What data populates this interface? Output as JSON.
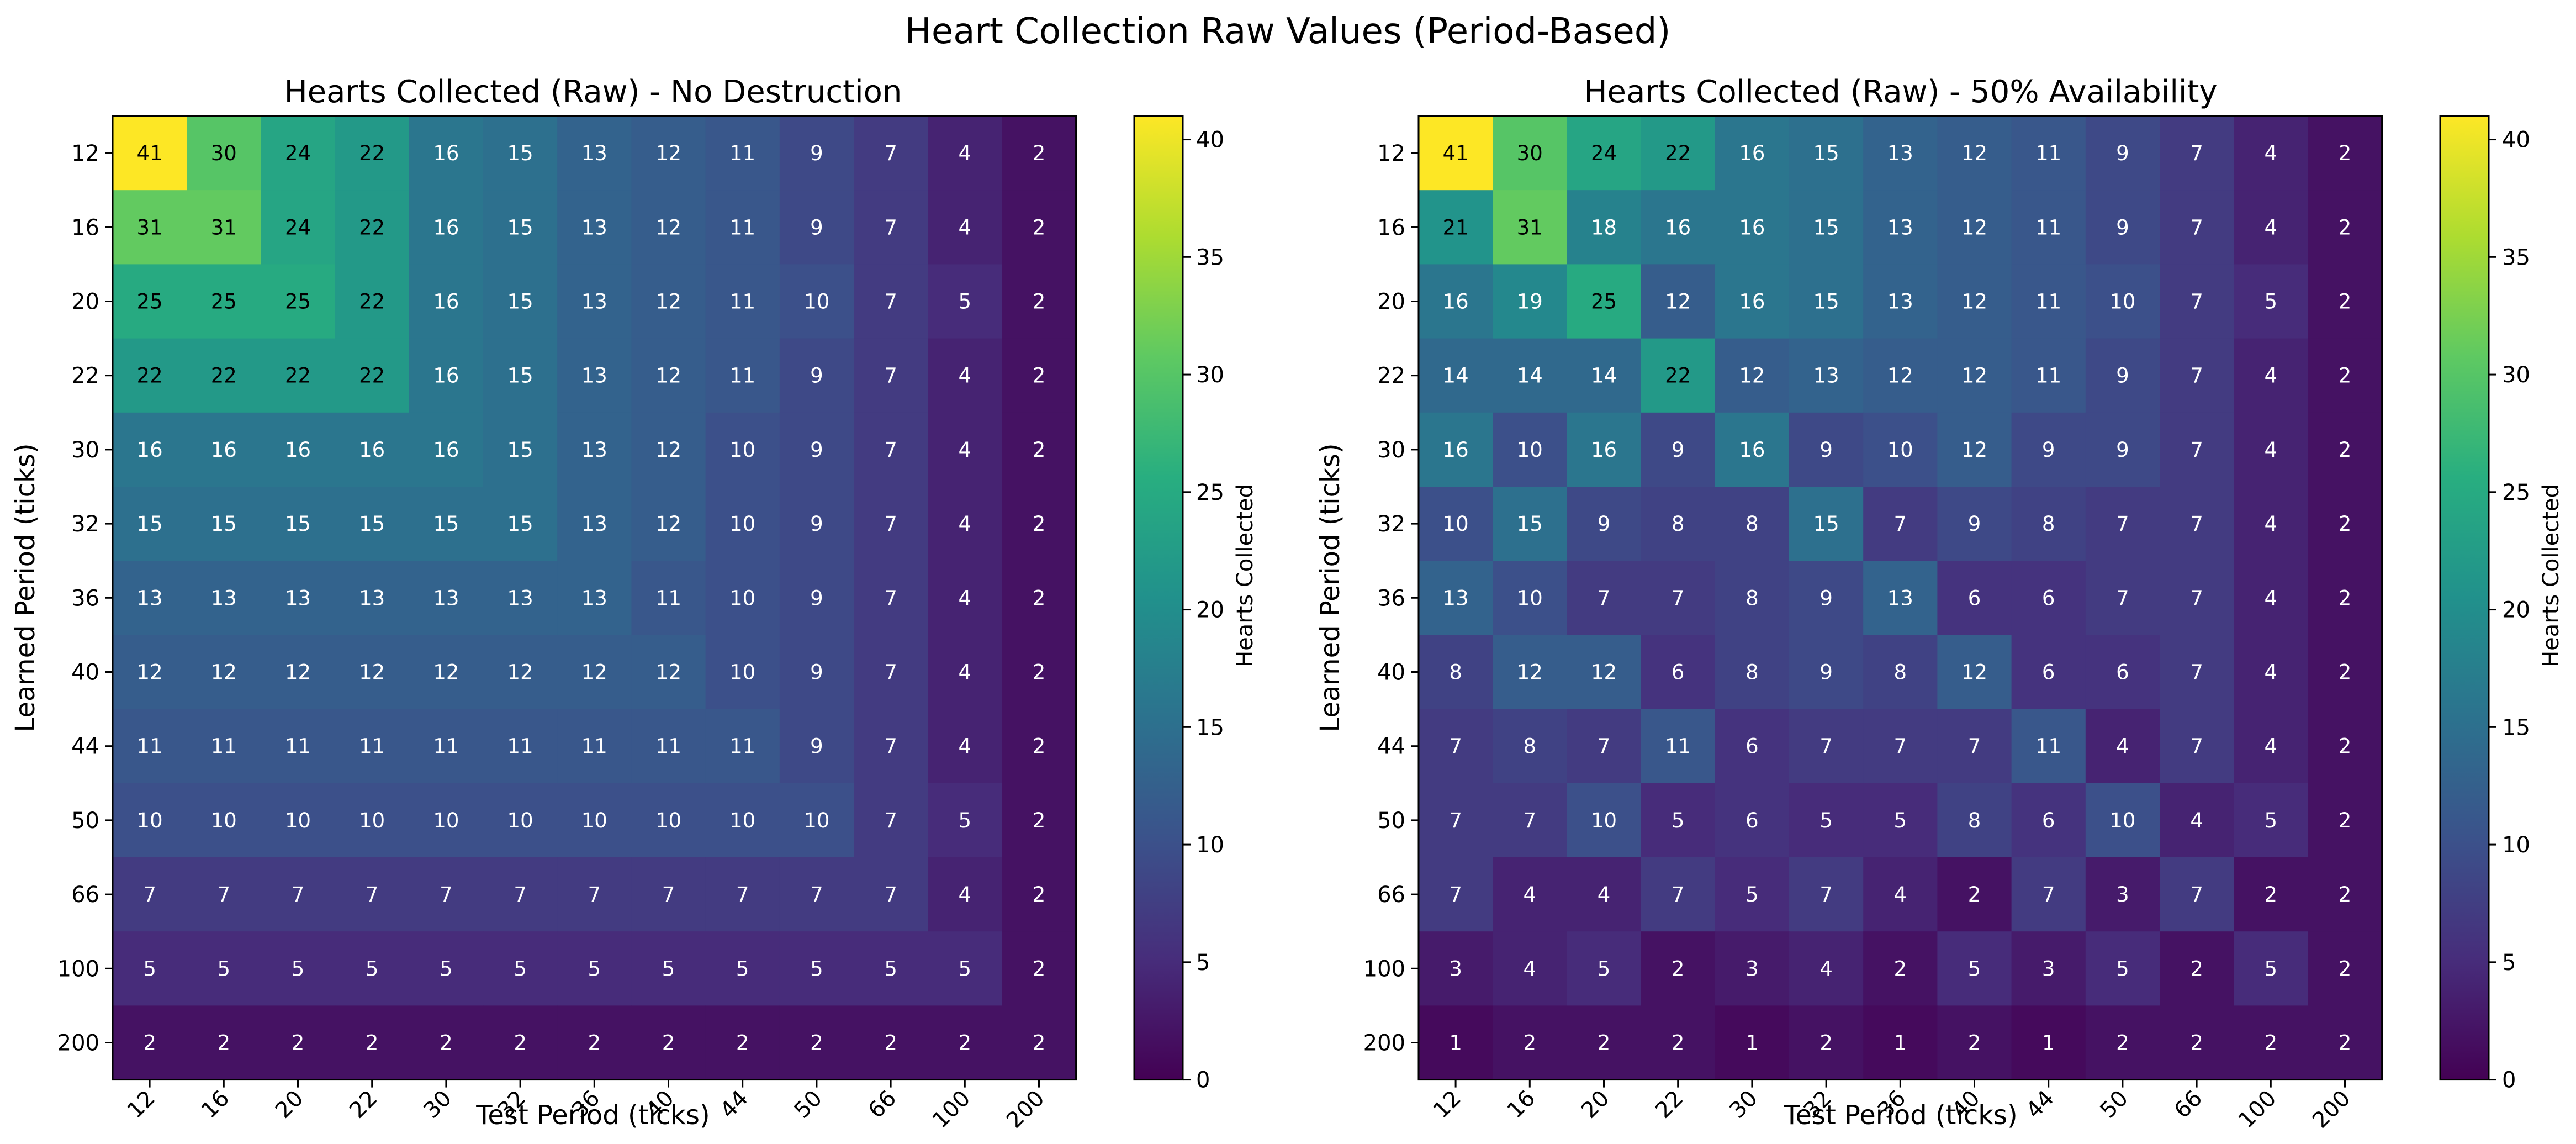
{
  "figure_title": "Heart Collection Raw Values (Period-Based)",
  "colormap": "viridis",
  "chart_data": [
    {
      "type": "heatmap",
      "title": "Hearts Collected (Raw) - No Destruction",
      "xlabel": "Test Period (ticks)",
      "ylabel": "Learned Period (ticks)",
      "x_categories": [
        "12",
        "16",
        "20",
        "22",
        "30",
        "32",
        "36",
        "40",
        "44",
        "50",
        "66",
        "100",
        "200"
      ],
      "y_categories": [
        "12",
        "16",
        "20",
        "22",
        "30",
        "32",
        "36",
        "40",
        "44",
        "50",
        "66",
        "100",
        "200"
      ],
      "values": [
        [
          41,
          30,
          24,
          22,
          16,
          15,
          13,
          12,
          11,
          9,
          7,
          4,
          2
        ],
        [
          31,
          31,
          24,
          22,
          16,
          15,
          13,
          12,
          11,
          9,
          7,
          4,
          2
        ],
        [
          25,
          25,
          25,
          22,
          16,
          15,
          13,
          12,
          11,
          10,
          7,
          5,
          2
        ],
        [
          22,
          22,
          22,
          22,
          16,
          15,
          13,
          12,
          11,
          9,
          7,
          4,
          2
        ],
        [
          16,
          16,
          16,
          16,
          16,
          15,
          13,
          12,
          10,
          9,
          7,
          4,
          2
        ],
        [
          15,
          15,
          15,
          15,
          15,
          15,
          13,
          12,
          10,
          9,
          7,
          4,
          2
        ],
        [
          13,
          13,
          13,
          13,
          13,
          13,
          13,
          11,
          10,
          9,
          7,
          4,
          2
        ],
        [
          12,
          12,
          12,
          12,
          12,
          12,
          12,
          12,
          10,
          9,
          7,
          4,
          2
        ],
        [
          11,
          11,
          11,
          11,
          11,
          11,
          11,
          11,
          11,
          9,
          7,
          4,
          2
        ],
        [
          10,
          10,
          10,
          10,
          10,
          10,
          10,
          10,
          10,
          10,
          7,
          5,
          2
        ],
        [
          7,
          7,
          7,
          7,
          7,
          7,
          7,
          7,
          7,
          7,
          7,
          4,
          2
        ],
        [
          5,
          5,
          5,
          5,
          5,
          5,
          5,
          5,
          5,
          5,
          5,
          5,
          2
        ],
        [
          2,
          2,
          2,
          2,
          2,
          2,
          2,
          2,
          2,
          2,
          2,
          2,
          2
        ]
      ],
      "colorbar": {
        "label": "Hearts Collected",
        "range": [
          0,
          41
        ],
        "ticks": [
          "0",
          "5",
          "10",
          "15",
          "20",
          "25",
          "30",
          "35",
          "40"
        ]
      }
    },
    {
      "type": "heatmap",
      "title": "Hearts Collected (Raw) - 50% Availability",
      "xlabel": "Test Period (ticks)",
      "ylabel": "Learned Period (ticks)",
      "x_categories": [
        "12",
        "16",
        "20",
        "22",
        "30",
        "32",
        "36",
        "40",
        "44",
        "50",
        "66",
        "100",
        "200"
      ],
      "y_categories": [
        "12",
        "16",
        "20",
        "22",
        "30",
        "32",
        "36",
        "40",
        "44",
        "50",
        "66",
        "100",
        "200"
      ],
      "values": [
        [
          41,
          30,
          24,
          22,
          16,
          15,
          13,
          12,
          11,
          9,
          7,
          4,
          2
        ],
        [
          21,
          31,
          18,
          16,
          16,
          15,
          13,
          12,
          11,
          9,
          7,
          4,
          2
        ],
        [
          16,
          19,
          25,
          12,
          16,
          15,
          13,
          12,
          11,
          10,
          7,
          5,
          2
        ],
        [
          14,
          14,
          14,
          22,
          12,
          13,
          12,
          12,
          11,
          9,
          7,
          4,
          2
        ],
        [
          16,
          10,
          16,
          9,
          16,
          9,
          10,
          12,
          9,
          9,
          7,
          4,
          2
        ],
        [
          10,
          15,
          9,
          8,
          8,
          15,
          7,
          9,
          8,
          7,
          7,
          4,
          2
        ],
        [
          13,
          10,
          7,
          7,
          8,
          9,
          13,
          6,
          6,
          7,
          7,
          4,
          2
        ],
        [
          8,
          12,
          12,
          6,
          8,
          9,
          8,
          12,
          6,
          6,
          7,
          4,
          2
        ],
        [
          7,
          8,
          7,
          11,
          6,
          7,
          7,
          7,
          11,
          4,
          7,
          4,
          2
        ],
        [
          7,
          7,
          10,
          5,
          6,
          5,
          5,
          8,
          6,
          10,
          4,
          5,
          2
        ],
        [
          7,
          4,
          4,
          7,
          5,
          7,
          4,
          2,
          7,
          3,
          7,
          2,
          2
        ],
        [
          3,
          4,
          5,
          2,
          3,
          4,
          2,
          5,
          3,
          5,
          2,
          5,
          2
        ],
        [
          1,
          2,
          2,
          2,
          1,
          2,
          1,
          2,
          1,
          2,
          2,
          2,
          2
        ]
      ],
      "colorbar": {
        "label": "Hearts Collected",
        "range": [
          0,
          41
        ],
        "ticks": [
          "0",
          "5",
          "10",
          "15",
          "20",
          "25",
          "30",
          "35",
          "40"
        ]
      }
    }
  ]
}
